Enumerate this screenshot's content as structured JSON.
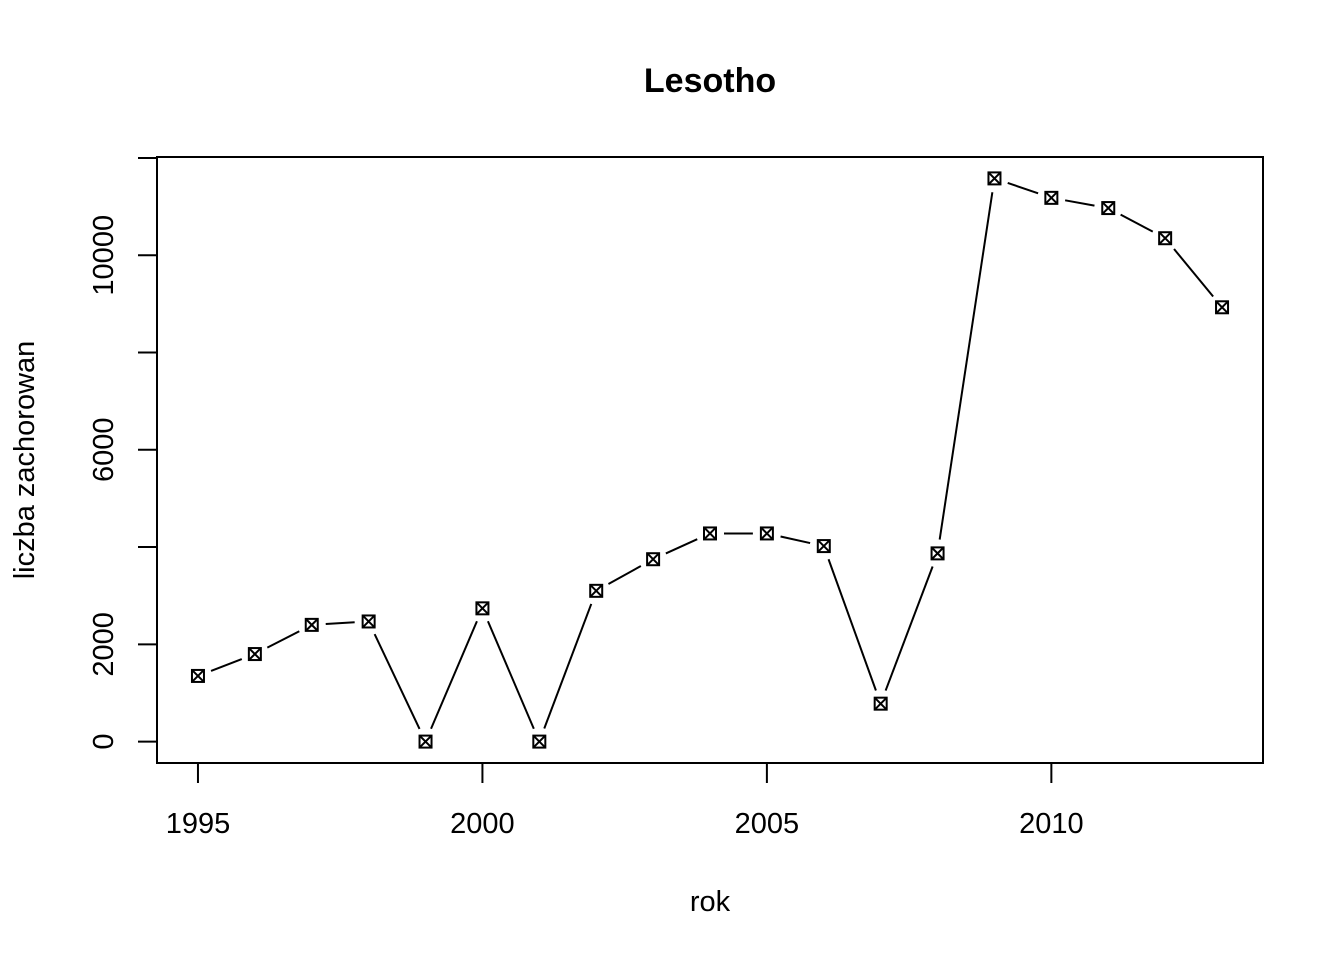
{
  "chart_data": {
    "type": "line",
    "title": "Lesotho",
    "xlabel": "rok",
    "ylabel": "liczba zachorowan",
    "x": [
      1995,
      1996,
      1997,
      1998,
      1999,
      2000,
      2001,
      2002,
      2003,
      2004,
      2005,
      2006,
      2007,
      2008,
      2009,
      2010,
      2011,
      2012,
      2013
    ],
    "series": [
      {
        "values": [
          1350,
          1800,
          2400,
          2470,
          0,
          2740,
          0,
          3100,
          3750,
          4280,
          4280,
          4020,
          780,
          3870,
          11580,
          11180,
          10970,
          10350,
          8930
        ]
      }
    ],
    "xlim": [
      1994.28,
      2013.72
    ],
    "ylim": [
      -440,
      12020
    ],
    "xticks": [
      1995,
      2000,
      2005,
      2010
    ],
    "yticks": [
      0,
      2000,
      6000,
      10000
    ],
    "grid": false,
    "marker": "boxed-x",
    "line_style": "gapped-overplotted"
  }
}
